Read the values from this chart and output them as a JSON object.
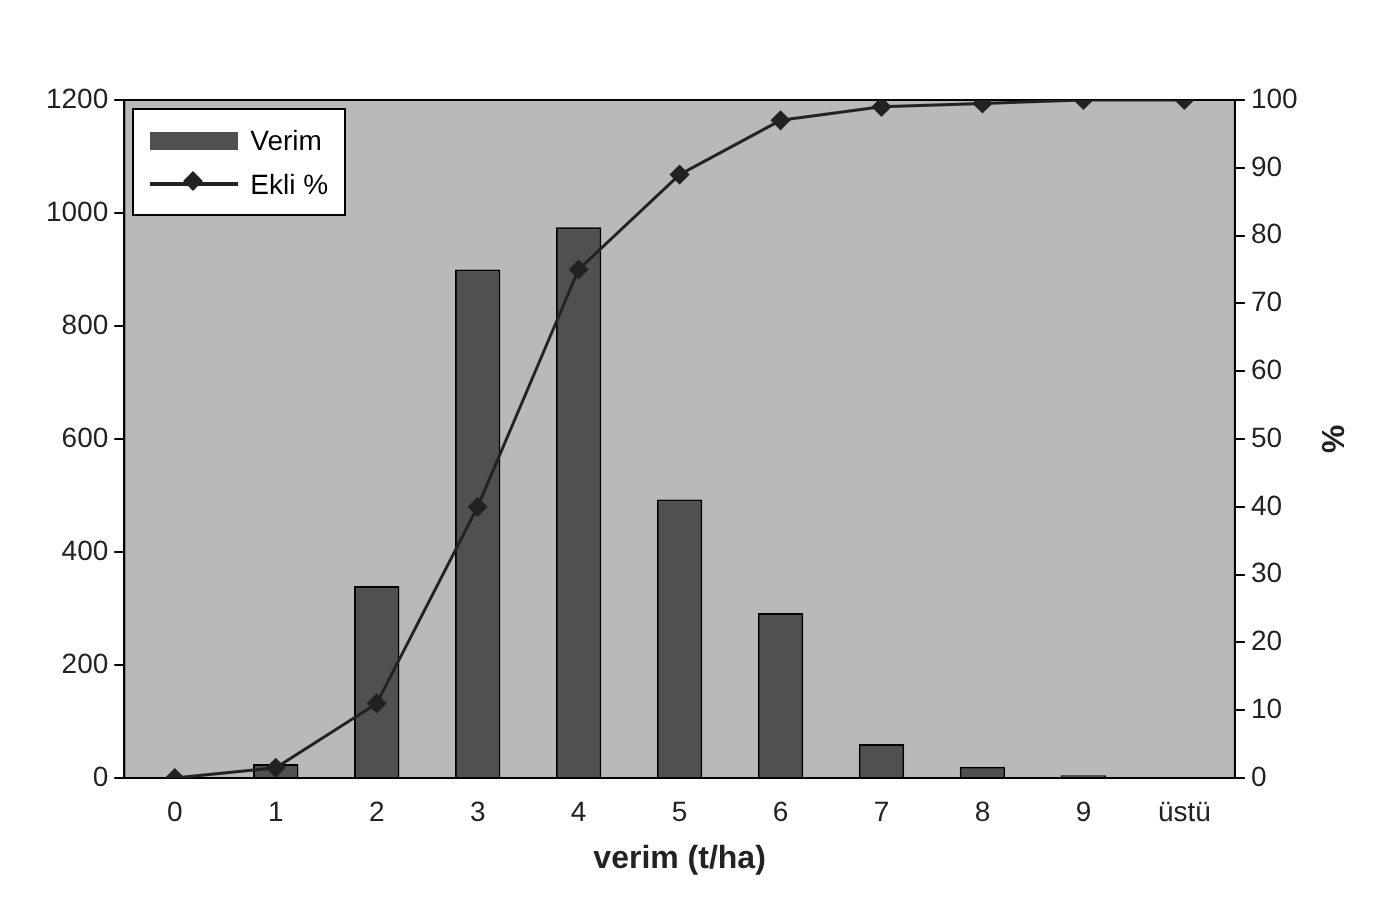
{
  "chart_data": {
    "type": "bar",
    "xlabel": "verim (t/ha)",
    "y2label": "%",
    "categories": [
      "0",
      "1",
      "2",
      "3",
      "4",
      "5",
      "6",
      "7",
      "8",
      "9",
      "üstü"
    ],
    "series": [
      {
        "name": "Verim",
        "color": "#505050",
        "values": [
          0,
          25,
          340,
          900,
          975,
          493,
          292,
          60,
          20,
          5,
          0
        ]
      },
      {
        "name": "Ekli %",
        "type": "line",
        "axis": "y2",
        "color": "#222222",
        "values": [
          0,
          1.5,
          11,
          40,
          75,
          89,
          97,
          99,
          99.5,
          100,
          100
        ]
      }
    ],
    "ylim": [
      0,
      1200
    ],
    "yticks": [
      0,
      200,
      400,
      600,
      800,
      1000,
      1200
    ],
    "y2lim": [
      0,
      100
    ],
    "y2ticks": [
      0,
      10,
      20,
      30,
      40,
      50,
      60,
      70,
      80,
      90,
      100
    ],
    "grid": false,
    "legend": "top left",
    "marker": "diamond",
    "line_style": "solid"
  }
}
